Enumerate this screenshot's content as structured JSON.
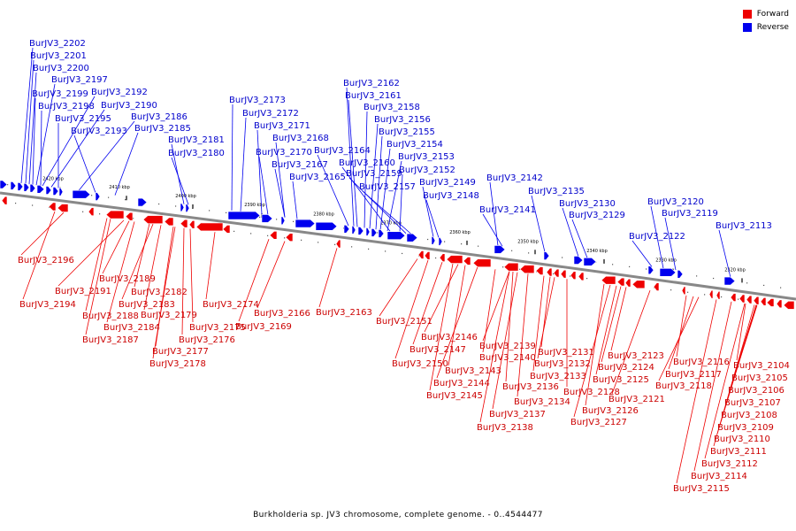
{
  "caption": "Burkholderia sp. JV3 chromosome, complete genome. - 0..4544477",
  "legend": [
    {
      "label": "Forward",
      "color": "#ee0000"
    },
    {
      "label": "Reverse",
      "color": "#0000ee"
    }
  ],
  "colors": {
    "forward": "#ee0000",
    "reverse": "#0000ee",
    "forward_label": "#cc0000",
    "reverse_label": "#0000cc",
    "backbone": "#888888"
  },
  "scale_labels": [
    "2420 kbp",
    "2410 kbp",
    "2400 kbp",
    "2390 kbp",
    "2380 kbp",
    "2370 kbp",
    "2360 kbp",
    "2350 kbp",
    "2340 kbp",
    "2330 kbp",
    "2320 kbp"
  ],
  "reverse_genes": [
    "BurJV3_2202",
    "BurJV3_2201",
    "BurJV3_2200",
    "BurJV3_2197",
    "BurJV3_2199",
    "BurJV3_2192",
    "BurJV3_2198",
    "BurJV3_2190",
    "BurJV3_2195",
    "BurJV3_2186",
    "BurJV3_2193",
    "BurJV3_2185",
    "BurJV3_2181",
    "BurJV3_2180",
    "BurJV3_2173",
    "BurJV3_2172",
    "BurJV3_2171",
    "BurJV3_2168",
    "BurJV3_2170",
    "BurJV3_2167",
    "BurJV3_2165",
    "BurJV3_2164",
    "BurJV3_2162",
    "BurJV3_2161",
    "BurJV3_2158",
    "BurJV3_2156",
    "BurJV3_2155",
    "BurJV3_2154",
    "BurJV3_2153",
    "BurJV3_2160",
    "BurJV3_2152",
    "BurJV3_2159",
    "BurJV3_2157",
    "BurJV3_2149",
    "BurJV3_2148",
    "BurJV3_2142",
    "BurJV3_2141",
    "BurJV3_2135",
    "BurJV3_2130",
    "BurJV3_2129",
    "BurJV3_2122",
    "BurJV3_2120",
    "BurJV3_2119",
    "BurJV3_2113"
  ],
  "forward_genes": [
    "BurJV3_2196",
    "BurJV3_2194",
    "BurJV3_2189",
    "BurJV3_2191",
    "BurJV3_2188",
    "BurJV3_2187",
    "BurJV3_2184",
    "BurJV3_2182",
    "BurJV3_2183",
    "BurJV3_2179",
    "BurJV3_2177",
    "BurJV3_2178",
    "BurJV3_2176",
    "BurJV3_2175",
    "BurJV3_2174",
    "BurJV3_2166",
    "BurJV3_2169",
    "BurJV3_2163",
    "BurJV3_2151",
    "BurJV3_2150",
    "BurJV3_2146",
    "BurJV3_2147",
    "BurJV3_2143",
    "BurJV3_2144",
    "BurJV3_2145",
    "BurJV3_2139",
    "BurJV3_2140",
    "BurJV3_2136",
    "BurJV3_2137",
    "BurJV3_2138",
    "BurJV3_2134",
    "BurJV3_2131",
    "BurJV3_2132",
    "BurJV3_2133",
    "BurJV3_2128",
    "BurJV3_2126",
    "BurJV3_2127",
    "BurJV3_2123",
    "BurJV3_2124",
    "BurJV3_2125",
    "BurJV3_2121",
    "BurJV3_2116",
    "BurJV3_2117",
    "BurJV3_2118",
    "BurJV3_2104",
    "BurJV3_2105",
    "BurJV3_2106",
    "BurJV3_2107",
    "BurJV3_2108",
    "BurJV3_2109",
    "BurJV3_2110",
    "BurJV3_2111",
    "BurJV3_2112",
    "BurJV3_2114",
    "BurJV3_2115"
  ]
}
